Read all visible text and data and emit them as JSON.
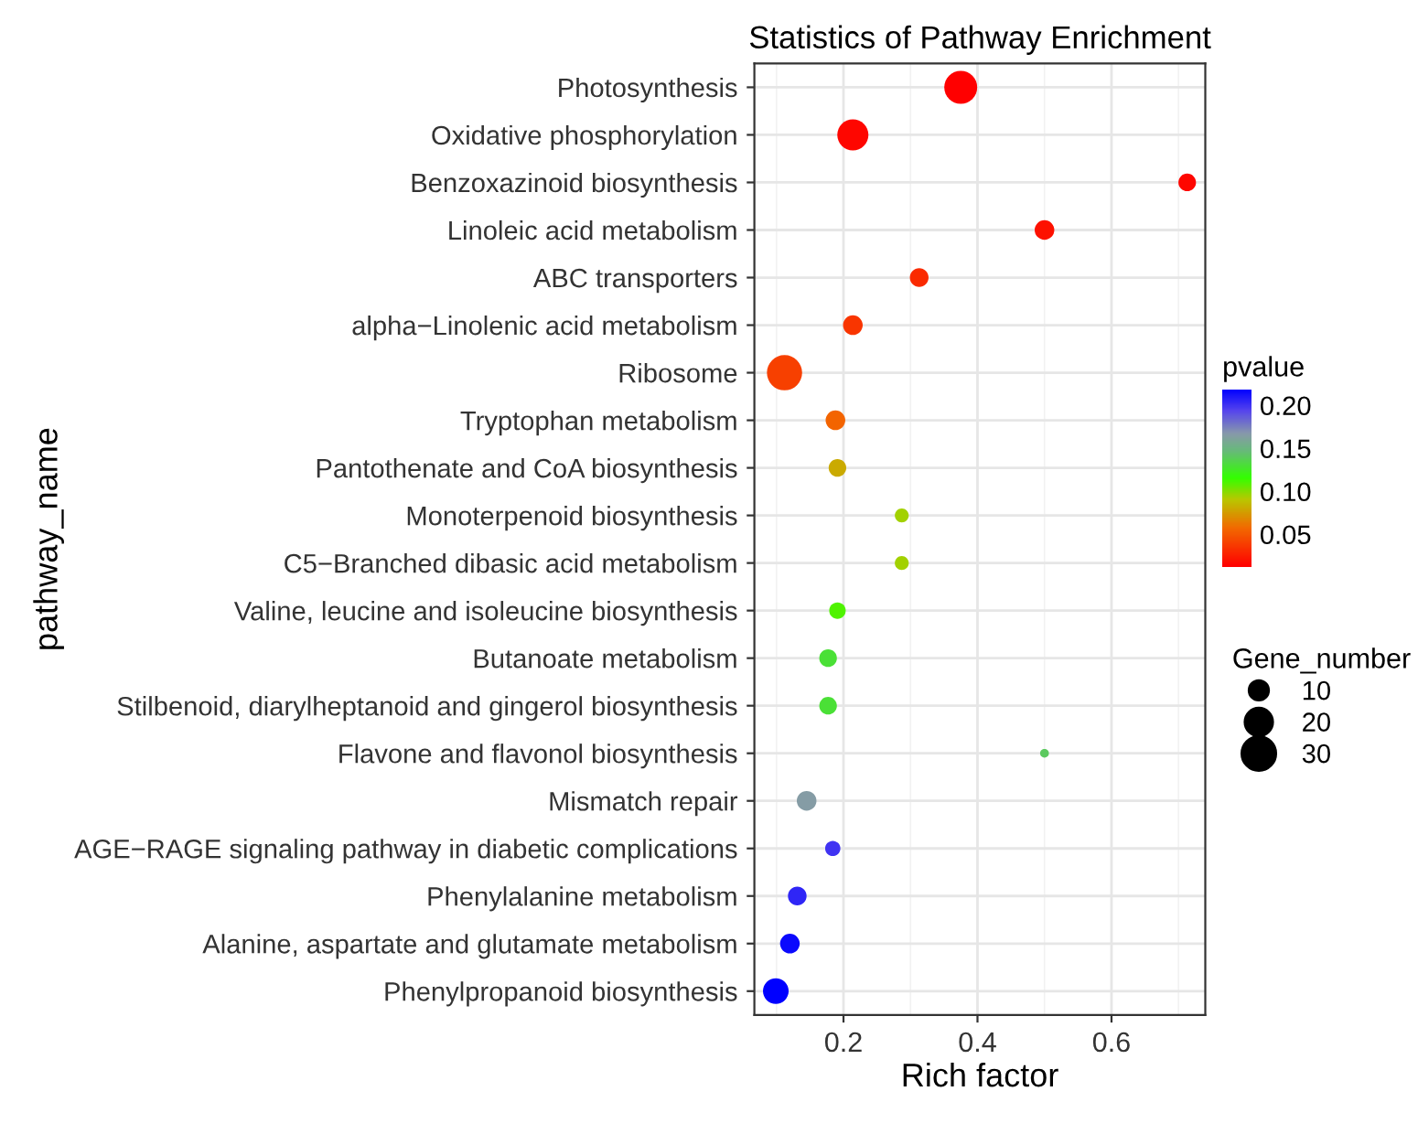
{
  "chart_data": {
    "type": "bubble",
    "orientation": "horizontal",
    "title": "Statistics of Pathway Enrichment",
    "xlabel": "Rich factor",
    "ylabel": "pathway_name",
    "clabel": "pvalue",
    "legend_title": "Gene_number",
    "categories": [
      "Photosynthesis",
      "Oxidative phosphorylation",
      "Benzoxazinoid biosynthesis",
      "Linoleic acid metabolism",
      "ABC transporters",
      "alpha−Linolenic acid metabolism",
      "Ribosome",
      "Tryptophan metabolism",
      "Pantothenate and CoA biosynthesis",
      "Monoterpenoid biosynthesis",
      "C5−Branched dibasic acid metabolism",
      "Valine, leucine and isoleucine biosynthesis",
      "Butanoate metabolism",
      "Stilbenoid, diarylheptanoid and gingerol biosynthesis",
      "Flavone and flavonol biosynthesis",
      "Mismatch repair",
      "AGE−RAGE signaling pathway in diabetic complications",
      "Phenylalanine metabolism",
      "Alanine, aspartate and glutamate metabolism",
      "Phenylpropanoid biosynthesis"
    ],
    "values": [
      0.375,
      0.214,
      0.713,
      0.5,
      0.313,
      0.214,
      0.112,
      0.188,
      0.191,
      0.287,
      0.287,
      0.191,
      0.177,
      0.177,
      0.5,
      0.145,
      0.184,
      0.131,
      0.12,
      0.099
    ],
    "sizes": [
      28,
      25,
      8,
      10,
      9,
      10,
      32,
      10,
      8,
      5,
      5,
      7,
      8,
      8,
      2,
      10,
      6,
      9,
      10,
      17
    ],
    "cvalues": [
      0.012,
      0.015,
      0.015,
      0.02,
      0.03,
      0.035,
      0.04,
      0.055,
      0.08,
      0.095,
      0.095,
      0.11,
      0.13,
      0.13,
      0.14,
      0.165,
      0.2,
      0.205,
      0.215,
      0.219
    ],
    "size_legend": [
      10,
      20,
      30
    ],
    "clim": [
      0.012,
      0.219
    ],
    "cticks": [
      {
        "value": 0.05,
        "label": "0.05"
      },
      {
        "value": 0.1,
        "label": "0.10"
      },
      {
        "value": 0.15,
        "label": "0.15"
      },
      {
        "value": 0.2,
        "label": "0.20"
      }
    ],
    "xlim": [
      0.067,
      0.74
    ],
    "xticks": [
      0.2,
      0.4,
      0.6
    ],
    "grid": true
  }
}
